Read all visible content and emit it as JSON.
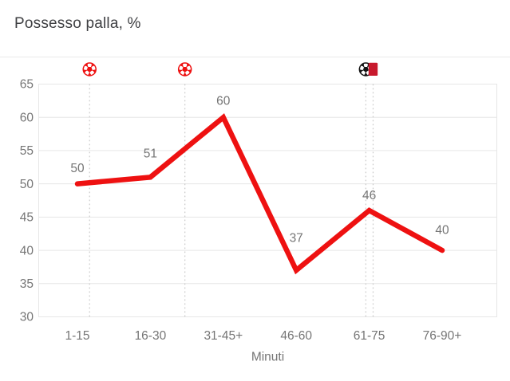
{
  "title": "Possesso palla, %",
  "chart_data": {
    "type": "line",
    "title": "Possesso palla, %",
    "categories": [
      "1-15",
      "16-30",
      "31-45+",
      "46-60",
      "61-75",
      "76-90+"
    ],
    "values": [
      50,
      51,
      60,
      37,
      46,
      40
    ],
    "series": [
      {
        "name": "Possesso palla %",
        "values": [
          50,
          51,
          60,
          37,
          46,
          40
        ]
      }
    ],
    "xlabel": "Minuti",
    "ylabel": "",
    "ylim": [
      30,
      65
    ],
    "yticks": [
      30,
      35,
      40,
      45,
      50,
      55,
      60,
      65
    ],
    "grid": "horizontal",
    "legend": "none",
    "colors": {
      "line": "#ee1111",
      "tick_label": "#757575",
      "value_label": "#757575",
      "gridline": "#e6e6e6",
      "event_guide": "#c9c9c9",
      "title": "#3f4043",
      "goal_home": "#ee1111",
      "goal_away": "#141414",
      "red_card": "#c8192d"
    },
    "events": [
      {
        "icon": "soccer-ball",
        "kind": "goal-home",
        "minute": 10,
        "color": "#ee1111"
      },
      {
        "icon": "soccer-ball",
        "kind": "goal-home",
        "minute": 29.6,
        "color": "#ee1111"
      },
      {
        "icon": "soccer-ball",
        "kind": "goal-away",
        "minute": 66.8,
        "color": "#141414"
      },
      {
        "icon": "red-card",
        "kind": "red-card",
        "minute": 68.3,
        "color": "#c8192d"
      }
    ]
  }
}
